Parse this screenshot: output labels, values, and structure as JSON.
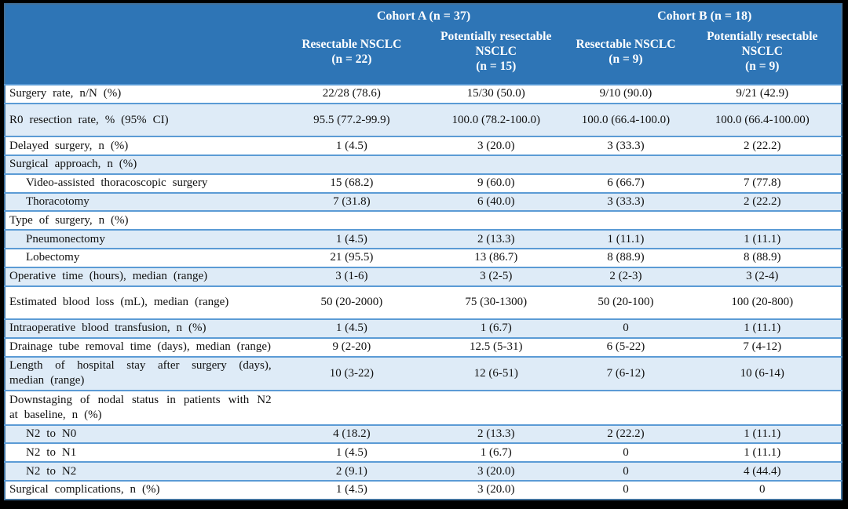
{
  "table": {
    "cohorts": [
      {
        "label": "Cohort A (n = 37)",
        "columns": [
          {
            "name": "Resectable NSCLC",
            "n": "(n = 22)"
          },
          {
            "name": "Potentially resectable NSCLC",
            "n": "(n = 15)"
          }
        ]
      },
      {
        "label": "Cohort B (n = 18)",
        "columns": [
          {
            "name": "Resectable NSCLC",
            "n": "(n = 9)"
          },
          {
            "name": "Potentially resectable NSCLC",
            "n": "(n = 9)"
          }
        ]
      }
    ],
    "rows": [
      {
        "label": "Surgery rate, n/N (%)",
        "indent": false,
        "tall": false,
        "values": [
          "22/28 (78.6)",
          "15/30 (50.0)",
          "9/10 (90.0)",
          "9/21 (42.9)"
        ]
      },
      {
        "label": "R0 resection rate, % (95% CI)",
        "indent": false,
        "tall": true,
        "values": [
          "95.5 (77.2-99.9)",
          "100.0 (78.2-100.0)",
          "100.0 (66.4-100.0)",
          "100.0 (66.4-100.00)"
        ]
      },
      {
        "label": "Delayed surgery, n (%)",
        "indent": false,
        "tall": false,
        "values": [
          "1 (4.5)",
          "3 (20.0)",
          "3 (33.3)",
          "2 (22.2)"
        ]
      },
      {
        "label": "Surgical approach, n (%)",
        "indent": false,
        "tall": false,
        "values": [
          "",
          "",
          "",
          ""
        ]
      },
      {
        "label": "Video-assisted thoracoscopic surgery",
        "indent": true,
        "tall": false,
        "values": [
          "15 (68.2)",
          "9 (60.0)",
          "6 (66.7)",
          "7 (77.8)"
        ]
      },
      {
        "label": "Thoracotomy",
        "indent": true,
        "tall": false,
        "values": [
          "7 (31.8)",
          "6 (40.0)",
          "3 (33.3)",
          "2 (22.2)"
        ]
      },
      {
        "label": "Type of surgery, n (%)",
        "indent": false,
        "tall": false,
        "values": [
          "",
          "",
          "",
          ""
        ]
      },
      {
        "label": "Pneumonectomy",
        "indent": true,
        "tall": false,
        "values": [
          "1 (4.5)",
          "2 (13.3)",
          "1 (11.1)",
          "1 (11.1)"
        ]
      },
      {
        "label": "Lobectomy",
        "indent": true,
        "tall": false,
        "values": [
          "21 (95.5)",
          "13 (86.7)",
          "8 (88.9)",
          "8 (88.9)"
        ]
      },
      {
        "label": "Operative time (hours), median (range)",
        "indent": false,
        "tall": false,
        "values": [
          "3 (1-6)",
          "3 (2-5)",
          "2 (2-3)",
          "3 (2-4)"
        ]
      },
      {
        "label": "Estimated blood loss (mL), median (range)",
        "indent": false,
        "tall": true,
        "values": [
          "50 (20-2000)",
          "75 (30-1300)",
          "50 (20-100)",
          "100 (20-800)"
        ]
      },
      {
        "label": "Intraoperative blood transfusion, n (%)",
        "indent": false,
        "tall": false,
        "values": [
          "1 (4.5)",
          "1 (6.7)",
          "0",
          "1 (11.1)"
        ]
      },
      {
        "label": "Drainage tube removal time (days), median (range)",
        "indent": false,
        "tall": false,
        "values": [
          "9 (2-20)",
          "12.5 (5-31)",
          "6 (5-22)",
          "7 (4-12)"
        ]
      },
      {
        "label": "Length of hospital stay after surgery (days), median (range)",
        "indent": false,
        "tall": false,
        "values": [
          "10 (3-22)",
          "12 (6-51)",
          "7 (6-12)",
          "10 (6-14)"
        ]
      },
      {
        "label": "Downstaging of nodal status in patients with N2 at baseline, n (%)",
        "indent": false,
        "tall": false,
        "values": [
          "",
          "",
          "",
          ""
        ]
      },
      {
        "label": "N2 to N0",
        "indent": true,
        "tall": false,
        "values": [
          "4 (18.2)",
          "2 (13.3)",
          "2 (22.2)",
          "1 (11.1)"
        ]
      },
      {
        "label": "N2 to N1",
        "indent": true,
        "tall": false,
        "values": [
          "1 (4.5)",
          "1 (6.7)",
          "0",
          "1 (11.1)"
        ]
      },
      {
        "label": "N2 to N2",
        "indent": true,
        "tall": false,
        "values": [
          "2 (9.1)",
          "3 (20.0)",
          "0",
          "4 (44.4)"
        ]
      },
      {
        "label": "Surgical complications, n (%)",
        "indent": false,
        "tall": false,
        "values": [
          "1 (4.5)",
          "3 (20.0)",
          "0",
          "0"
        ]
      }
    ]
  },
  "colors": {
    "header_bg": "#2E75B6",
    "band_blue": "#DEEBF7",
    "band_white": "#ffffff",
    "grid_line": "#5B9BD5",
    "outer_border": "#41719C",
    "page_bg": "#000000",
    "header_text": "#ffffff",
    "body_text": "#111111"
  }
}
